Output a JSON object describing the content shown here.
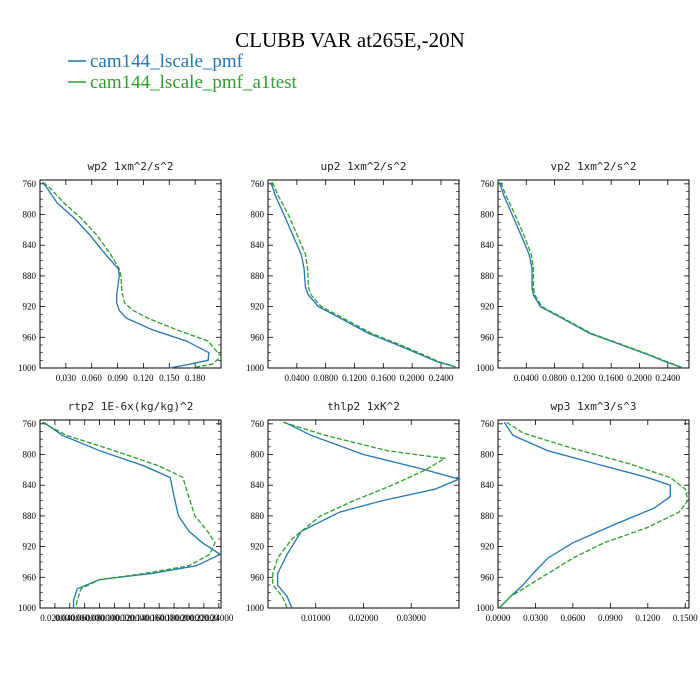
{
  "figure": {
    "title": "CLUBB VAR at265E,-20N",
    "legend": [
      {
        "label": "cam144_lscale_pmf",
        "color": "#1f77b4",
        "dash": "solid"
      },
      {
        "label": "cam144_lscale_pmf_a1test",
        "color": "#2ca02c",
        "dash": "dashed"
      }
    ]
  },
  "chart_data": [
    {
      "type": "line",
      "title": "wp2  1xm^2/s^2",
      "xlim": [
        0.0,
        0.21
      ],
      "xticks": [
        0.03,
        0.06,
        0.09,
        0.12,
        0.15,
        0.18
      ],
      "xtick_labels": [
        "0.030",
        "0.060",
        "0.090",
        "0.120",
        "0.150",
        "0.180"
      ],
      "ylim": [
        1000,
        755
      ],
      "yticks": [
        760,
        800,
        840,
        880,
        920,
        960,
        1000
      ],
      "series": [
        {
          "name": "cam144_lscale_pmf",
          "color": "#1f77b4",
          "dash": "solid",
          "x": [
            0.003,
            0.008,
            0.02,
            0.04,
            0.058,
            0.076,
            0.091,
            0.092,
            0.089,
            0.089,
            0.092,
            0.1,
            0.13,
            0.17,
            0.196,
            0.195,
            0.17,
            0.15
          ],
          "y": [
            758,
            765,
            785,
            805,
            827,
            852,
            871,
            880,
            905,
            915,
            925,
            935,
            950,
            965,
            980,
            990,
            996,
            1000
          ]
        },
        {
          "name": "cam144_lscale_pmf_a1test",
          "color": "#2ca02c",
          "dash": "dashed",
          "x": [
            0.004,
            0.012,
            0.028,
            0.048,
            0.066,
            0.082,
            0.092,
            0.094,
            0.095,
            0.098,
            0.108,
            0.125,
            0.158,
            0.195,
            0.21,
            0.2,
            0.175
          ],
          "y": [
            758,
            766,
            785,
            805,
            827,
            852,
            871,
            880,
            900,
            915,
            925,
            935,
            950,
            965,
            985,
            995,
            1000
          ]
        }
      ]
    },
    {
      "type": "line",
      "title": "up2  1xm^2/s^2",
      "xlim": [
        0.0,
        0.265
      ],
      "xticks": [
        0.04,
        0.08,
        0.12,
        0.16,
        0.2,
        0.24
      ],
      "xtick_labels": [
        "0.0400",
        "0.0800",
        "0.1200",
        "0.1600",
        "0.2000",
        "0.2400"
      ],
      "ylim": [
        1000,
        755
      ],
      "yticks": [
        760,
        800,
        840,
        880,
        920,
        960,
        1000
      ],
      "series": [
        {
          "name": "cam144_lscale_pmf",
          "color": "#1f77b4",
          "dash": "solid",
          "x": [
            0.004,
            0.01,
            0.022,
            0.036,
            0.046,
            0.05,
            0.052,
            0.056,
            0.07,
            0.1,
            0.14,
            0.18,
            0.21,
            0.235,
            0.255,
            0.262
          ],
          "y": [
            758,
            775,
            800,
            830,
            852,
            870,
            895,
            905,
            920,
            935,
            955,
            970,
            982,
            992,
            997,
            1000
          ]
        },
        {
          "name": "cam144_lscale_pmf_a1test",
          "color": "#2ca02c",
          "dash": "dashed",
          "x": [
            0.006,
            0.014,
            0.028,
            0.042,
            0.052,
            0.055,
            0.056,
            0.06,
            0.074,
            0.104,
            0.144,
            0.184,
            0.214,
            0.238,
            0.256,
            0.262
          ],
          "y": [
            758,
            775,
            800,
            830,
            852,
            870,
            895,
            905,
            920,
            935,
            955,
            970,
            982,
            992,
            997,
            1000
          ]
        }
      ]
    },
    {
      "type": "line",
      "title": "vp2  1xm^2/s^2",
      "xlim": [
        0.0,
        0.27
      ],
      "xticks": [
        0.04,
        0.08,
        0.12,
        0.16,
        0.2,
        0.24
      ],
      "xtick_labels": [
        "0.0400",
        "0.0800",
        "0.1200",
        "0.1600",
        "0.2000",
        "0.2400"
      ],
      "ylim": [
        1000,
        755
      ],
      "yticks": [
        760,
        800,
        840,
        880,
        920,
        960,
        1000
      ],
      "series": [
        {
          "name": "cam144_lscale_pmf",
          "color": "#1f77b4",
          "dash": "solid",
          "x": [
            0.002,
            0.008,
            0.02,
            0.034,
            0.044,
            0.048,
            0.048,
            0.05,
            0.06,
            0.09,
            0.13,
            0.175,
            0.21,
            0.24,
            0.262
          ],
          "y": [
            758,
            775,
            800,
            830,
            852,
            870,
            895,
            905,
            920,
            935,
            955,
            970,
            982,
            993,
            1000
          ]
        },
        {
          "name": "cam144_lscale_pmf_a1test",
          "color": "#2ca02c",
          "dash": "dashed",
          "x": [
            0.004,
            0.011,
            0.024,
            0.038,
            0.047,
            0.05,
            0.05,
            0.052,
            0.062,
            0.092,
            0.132,
            0.177,
            0.212,
            0.242,
            0.262
          ],
          "y": [
            758,
            775,
            800,
            830,
            852,
            870,
            895,
            905,
            920,
            935,
            955,
            970,
            982,
            993,
            1000
          ]
        }
      ]
    },
    {
      "type": "line",
      "title": "rtp2  1E-6x(kg/kg)^2",
      "xlim": [
        0.0,
        0.243
      ],
      "xticks": [
        0.02,
        0.04,
        0.06,
        0.08,
        0.1,
        0.12,
        0.14,
        0.16,
        0.18,
        0.2,
        0.22,
        0.24
      ],
      "xtick_labels": [
        "0.02000",
        "0.04000",
        "0.06000",
        "0.08000",
        "0.10000",
        "0.12000",
        "0.14000",
        "0.16000",
        "0.18000",
        "0.20000",
        "0.22000",
        "0.24000"
      ],
      "ylim": [
        1000,
        755
      ],
      "yticks": [
        760,
        800,
        840,
        880,
        920,
        960,
        1000
      ],
      "series": [
        {
          "name": "cam144_lscale_pmf",
          "color": "#1f77b4",
          "dash": "solid",
          "x": [
            0.005,
            0.03,
            0.08,
            0.14,
            0.175,
            0.18,
            0.186,
            0.2,
            0.218,
            0.242,
            0.21,
            0.15,
            0.08,
            0.05,
            0.045,
            0.045
          ],
          "y": [
            758,
            775,
            795,
            815,
            830,
            855,
            880,
            900,
            915,
            930,
            945,
            955,
            963,
            975,
            990,
            1000
          ]
        },
        {
          "name": "cam144_lscale_pmf_a1test",
          "color": "#2ca02c",
          "dash": "dashed",
          "x": [
            0.003,
            0.035,
            0.1,
            0.16,
            0.192,
            0.198,
            0.208,
            0.225,
            0.235,
            0.228,
            0.2,
            0.14,
            0.08,
            0.055,
            0.05,
            0.048
          ],
          "y": [
            758,
            775,
            795,
            815,
            830,
            850,
            880,
            900,
            915,
            930,
            945,
            955,
            963,
            975,
            990,
            1000
          ]
        }
      ]
    },
    {
      "type": "line",
      "title": "thlp2  1xK^2",
      "xlim": [
        0.0,
        0.04
      ],
      "xticks": [
        0.01,
        0.02,
        0.03
      ],
      "xtick_labels": [
        "0.01000",
        "0.02000",
        "0.03000"
      ],
      "ylim": [
        1000,
        755
      ],
      "yticks": [
        760,
        800,
        840,
        880,
        920,
        960,
        1000
      ],
      "series": [
        {
          "name": "cam144_lscale_pmf",
          "color": "#1f77b4",
          "dash": "solid",
          "x": [
            0.0035,
            0.009,
            0.02,
            0.033,
            0.04,
            0.035,
            0.024,
            0.015,
            0.007,
            0.004,
            0.002,
            0.002,
            0.004,
            0.005
          ],
          "y": [
            758,
            775,
            800,
            820,
            832,
            845,
            860,
            875,
            900,
            930,
            955,
            970,
            985,
            1000
          ]
        },
        {
          "name": "cam144_lscale_pmf_a1test",
          "color": "#2ca02c",
          "dash": "dashed",
          "x": [
            0.0032,
            0.012,
            0.025,
            0.037,
            0.033,
            0.026,
            0.018,
            0.011,
            0.005,
            0.002,
            0.001,
            0.001,
            0.003,
            0.004
          ],
          "y": [
            758,
            775,
            795,
            805,
            820,
            840,
            860,
            880,
            910,
            935,
            955,
            970,
            985,
            1000
          ]
        }
      ]
    },
    {
      "type": "line",
      "title": "wp3  1xm^3/s^3",
      "xlim": [
        0.0,
        0.153
      ],
      "xticks": [
        0.0,
        0.03,
        0.06,
        0.09,
        0.12,
        0.15
      ],
      "xtick_labels": [
        "0.0000",
        "0.0300",
        "0.0600",
        "0.0900",
        "0.1200",
        "0.1500"
      ],
      "ylim": [
        1000,
        755
      ],
      "yticks": [
        760,
        800,
        840,
        880,
        920,
        960,
        1000
      ],
      "series": [
        {
          "name": "cam144_lscale_pmf",
          "color": "#1f77b4",
          "dash": "solid",
          "x": [
            0.005,
            0.012,
            0.04,
            0.085,
            0.12,
            0.138,
            0.138,
            0.125,
            0.095,
            0.06,
            0.04,
            0.028,
            0.02,
            0.01,
            0.001
          ],
          "y": [
            758,
            775,
            795,
            815,
            830,
            840,
            855,
            870,
            890,
            915,
            935,
            955,
            970,
            985,
            1000
          ]
        },
        {
          "name": "cam144_lscale_pmf_a1test",
          "color": "#2ca02c",
          "dash": "dashed",
          "x": [
            0.007,
            0.02,
            0.06,
            0.105,
            0.138,
            0.15,
            0.152,
            0.145,
            0.12,
            0.085,
            0.06,
            0.04,
            0.025,
            0.01,
            0.001
          ],
          "y": [
            758,
            772,
            792,
            812,
            830,
            845,
            860,
            875,
            895,
            915,
            935,
            955,
            970,
            985,
            1000
          ]
        }
      ]
    }
  ]
}
